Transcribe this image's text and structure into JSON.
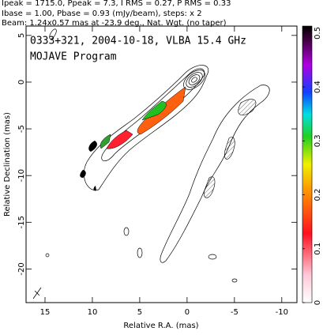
{
  "header": {
    "lines": [
      "Ipeak = 1715.0, Ppeak = 7.3, I RMS = 0.27, P RMS = 0.33",
      "Ibase = 1.00, Pbase = 0.93 (mJy/beam), steps: x 2",
      "Beam: 1.24x0.57 mas at -23.9 deg., Nat. Wgt. (no taper)"
    ]
  },
  "chart_data": {
    "type": "image",
    "title": "0333+321, 2004-10-18, VLBA 15.4 GHz",
    "subtitle": "MOJAVE Program",
    "xlabel": "Relative R.A. (mas)",
    "ylabel": "Relative Declination (mas)",
    "xlim": [
      17,
      -11.6
    ],
    "ylim": [
      -23.6,
      6
    ],
    "xticks": [
      15,
      10,
      5,
      0,
      -5,
      -10
    ],
    "yticks": [
      5,
      0,
      -5,
      -10,
      -15,
      -20
    ],
    "colorbar": {
      "lim": [
        0,
        0.513
      ],
      "ticks": [
        0,
        0.1,
        0.2,
        0.3,
        0.4,
        0.5
      ]
    }
  }
}
